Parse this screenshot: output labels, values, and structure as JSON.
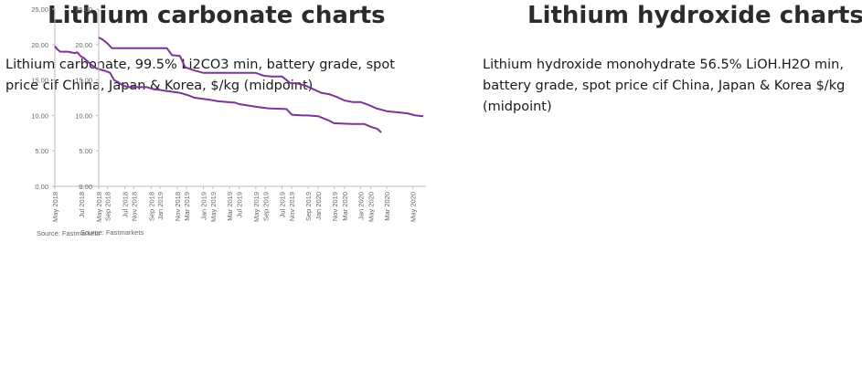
{
  "panels": [
    {
      "heading": "Lithium carbonate charts",
      "subtitle": "Lithium carbonate, 99.5% Li2CO3 min, battery grade, spot price cif China, Japan & Korea, $/kg (midpoint)",
      "source": "Source: Fastmarkets"
    },
    {
      "heading": "Lithium hydroxide charts",
      "subtitle": "Lithium hydroxide monohydrate 56.5% LiOH.H2O min, battery grade, spot price cif China, Japan & Korea $/kg (midpoint)",
      "source": "Source: Fastmarkets"
    }
  ],
  "colors": {
    "line": "#7a3596",
    "axis": "#bbbbbb",
    "text": "#666666"
  },
  "chart_data": [
    {
      "type": "line",
      "title": "Lithium carbonate, 99.5% Li2CO3 min, battery grade, spot price cif China, Japan & Korea, $/kg (midpoint)",
      "xlabel": "",
      "ylabel": "",
      "ylim": [
        0,
        25
      ],
      "yticks": [
        "0.00",
        "5.00",
        "10.00",
        "15.00",
        "20.00",
        "25.00"
      ],
      "xticks": [
        "May 2018",
        "Jul 2018",
        "Sep 2018",
        "Nov 2018",
        "Jan 2019",
        "Mar 2019",
        "May 2019",
        "Jul 2019",
        "Sep 2019",
        "Nov 2019",
        "Jan 2020",
        "Mar 2020",
        "May 2020"
      ],
      "xlim": [
        0,
        25
      ],
      "grid": false,
      "series": [
        {
          "x": [
            0,
            0.15,
            0.4,
            1.0,
            1.5,
            1.7,
            2.0,
            2.2,
            2.5,
            2.8,
            3.2,
            3.4,
            3.8,
            4.2,
            4.5,
            4.8,
            5.2,
            5.6,
            6.0,
            6.5,
            7.0,
            7.5,
            8.0,
            8.3,
            9.5,
            10.2,
            10.6,
            11.8,
            12.4,
            13.7,
            14.0,
            15.4,
            16.2,
            17.6,
            18.0,
            18.8,
            19.2,
            20.0,
            20.8,
            21.2,
            22.6,
            23.5,
            24.0,
            24.5,
            24.8
          ],
          "y": [
            19.8,
            19.4,
            19.0,
            19.0,
            18.8,
            18.9,
            18.3,
            18.1,
            17.6,
            17.1,
            16.6,
            16.5,
            16.3,
            16.0,
            15.0,
            14.7,
            14.2,
            14.0,
            14.0,
            14.0,
            14.0,
            13.7,
            13.6,
            13.5,
            13.2,
            12.8,
            12.5,
            12.2,
            12.0,
            11.8,
            11.6,
            11.2,
            11.0,
            10.9,
            10.1,
            10.0,
            10.0,
            9.9,
            9.3,
            8.9,
            8.8,
            8.8,
            8.4,
            8.1,
            7.6
          ]
        }
      ]
    },
    {
      "type": "line",
      "title": "Lithium hydroxide monohydrate 56.5% LiOH.H2O min, battery grade, spot price cif China, Japan & Korea $/kg (midpoint)",
      "xlabel": "",
      "ylabel": "",
      "ylim": [
        0,
        25
      ],
      "yticks": [
        "0.00",
        "5.00",
        "10.00",
        "15.00",
        "20.00",
        "25.00"
      ],
      "xticks": [
        "May 2018",
        "Jul 2018",
        "Sep 2018",
        "Nov 2018",
        "Jan 2019",
        "Mar 2019",
        "May 2019",
        "Jul 2019",
        "Sep 2019",
        "Nov 2019",
        "Jan 2020",
        "Mar 2020",
        "May 2020"
      ],
      "xlim": [
        0,
        25
      ],
      "grid": false,
      "series": [
        {
          "x": [
            0,
            0.3,
            0.7,
            1.0,
            2.0,
            3.0,
            4.0,
            5.2,
            5.6,
            6.2,
            6.6,
            7.2,
            8.0,
            9.0,
            10.0,
            11.0,
            12.0,
            12.6,
            13.2,
            14.0,
            14.6,
            15.2,
            15.8,
            16.4,
            17.0,
            17.6,
            18.2,
            18.8,
            19.4,
            20.0,
            20.6,
            21.2,
            22.0,
            23.0,
            23.6,
            24.2,
            24.8
          ],
          "y": [
            21.0,
            20.7,
            20.1,
            19.5,
            19.5,
            19.5,
            19.5,
            19.5,
            18.5,
            18.4,
            16.8,
            16.4,
            16.0,
            16.0,
            16.0,
            16.0,
            16.0,
            15.6,
            15.5,
            15.5,
            14.6,
            14.5,
            14.2,
            13.7,
            13.2,
            13.0,
            12.6,
            12.1,
            11.9,
            11.9,
            11.5,
            11.0,
            10.6,
            10.4,
            10.3,
            10.0,
            9.9
          ]
        }
      ]
    }
  ]
}
